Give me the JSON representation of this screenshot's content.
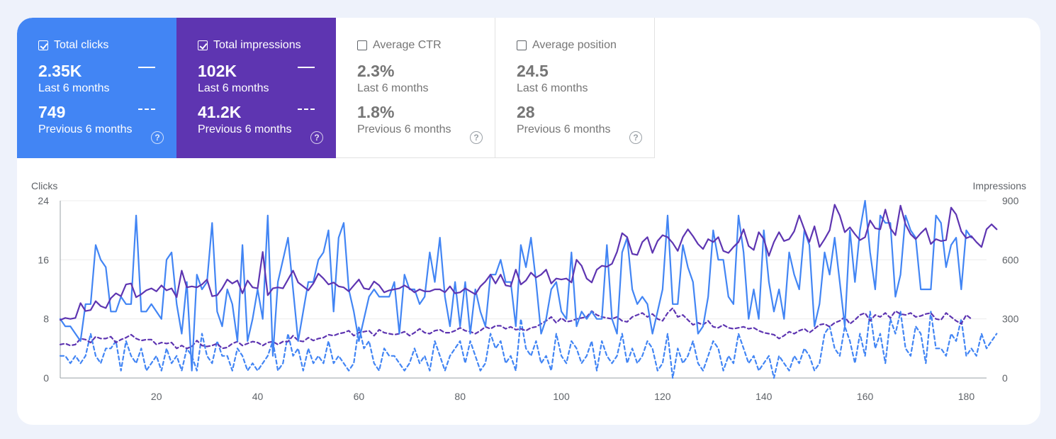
{
  "metrics": {
    "clicks": {
      "label": "Total clicks",
      "checked": true,
      "current_value": "2.35K",
      "current_period": "Last 6 months",
      "previous_value": "749",
      "previous_period": "Previous 6 months",
      "color": "#4285f4"
    },
    "impressions": {
      "label": "Total impressions",
      "checked": true,
      "current_value": "102K",
      "current_period": "Last 6 months",
      "previous_value": "41.2K",
      "previous_period": "Previous 6 months",
      "color": "#5e35b1"
    },
    "ctr": {
      "label": "Average CTR",
      "checked": false,
      "current_value": "2.3%",
      "current_period": "Last 6 months",
      "previous_value": "1.8%",
      "previous_period": "Previous 6 months"
    },
    "position": {
      "label": "Average position",
      "checked": false,
      "current_value": "24.5",
      "current_period": "Last 6 months",
      "previous_value": "28",
      "previous_period": "Previous 6 months"
    },
    "help_glyph": "?"
  },
  "chart_data": {
    "type": "line",
    "left_axis_label": "Clicks",
    "right_axis_label": "Impressions",
    "left_ylim": [
      0,
      24
    ],
    "left_ticks": [
      0,
      8,
      16,
      24
    ],
    "right_ylim": [
      0,
      900
    ],
    "right_ticks": [
      0,
      300,
      600,
      900
    ],
    "xlim": [
      1,
      184
    ],
    "x_ticks": [
      20,
      40,
      60,
      80,
      100,
      120,
      140,
      160,
      180
    ],
    "grid": true,
    "series": [
      {
        "metric": "clicks",
        "period": "current",
        "axis": "left",
        "style": "solid",
        "color": "#4285f4",
        "values": [
          8,
          7,
          7,
          6,
          5,
          10,
          10,
          18,
          16,
          15,
          9,
          9,
          11,
          10,
          10,
          22,
          9,
          9,
          10,
          9,
          8,
          16,
          17,
          10,
          6,
          13,
          1,
          14,
          12,
          13,
          21,
          9,
          7,
          12,
          10,
          5,
          18,
          5,
          8,
          12,
          8,
          22,
          3,
          13,
          16,
          19,
          12,
          5,
          9,
          13,
          13,
          16,
          17,
          20,
          9,
          19,
          21,
          12,
          9,
          5,
          8,
          11,
          12,
          11,
          11,
          11,
          13,
          6,
          14,
          12,
          12,
          10,
          11,
          17,
          13,
          19,
          11,
          7,
          13,
          7,
          13,
          6,
          12,
          9,
          7,
          14,
          14,
          16,
          13,
          13,
          7,
          18,
          15,
          19,
          13,
          6,
          8,
          12,
          13,
          9,
          8,
          17,
          7,
          9,
          8,
          9,
          8,
          8,
          18,
          8,
          6,
          17,
          19,
          12,
          10,
          11,
          10,
          6,
          9,
          12,
          22,
          10,
          10,
          18,
          15,
          13,
          6,
          7,
          11,
          20,
          16,
          16,
          11,
          10,
          22,
          17,
          8,
          12,
          8,
          20,
          13,
          9,
          12,
          8,
          17,
          14,
          12,
          20,
          18,
          7,
          10,
          17,
          14,
          19,
          13,
          7,
          20,
          13,
          20,
          24,
          17,
          12,
          22,
          21,
          21,
          11,
          14,
          22,
          20,
          19,
          12,
          12,
          12,
          22,
          21,
          15,
          18,
          19,
          12,
          20,
          19
        ]
      },
      {
        "metric": "impressions",
        "period": "current",
        "axis": "right",
        "style": "solid",
        "color": "#5e35b1",
        "values": [
          295,
          305,
          300,
          305,
          380,
          340,
          345,
          390,
          365,
          355,
          405,
          430,
          415,
          475,
          480,
          410,
          425,
          445,
          455,
          440,
          470,
          445,
          455,
          410,
          545,
          460,
          465,
          460,
          475,
          500,
          415,
          420,
          455,
          500,
          480,
          495,
          430,
          495,
          460,
          455,
          640,
          420,
          455,
          460,
          455,
          500,
          545,
          485,
          465,
          445,
          480,
          530,
          505,
          475,
          485,
          465,
          460,
          440,
          470,
          500,
          455,
          450,
          490,
          470,
          435,
          445,
          450,
          455,
          470,
          455,
          435,
          450,
          440,
          440,
          450,
          450,
          435,
          465,
          430,
          435,
          455,
          440,
          425,
          465,
          490,
          525,
          480,
          525,
          470,
          465,
          550,
          475,
          495,
          535,
          510,
          525,
          550,
          480,
          505,
          500,
          505,
          485,
          600,
          570,
          505,
          485,
          550,
          570,
          565,
          580,
          640,
          735,
          715,
          630,
          625,
          690,
          715,
          635,
          695,
          725,
          715,
          685,
          645,
          715,
          755,
          720,
          680,
          655,
          705,
          690,
          715,
          645,
          635,
          665,
          690,
          755,
          670,
          650,
          740,
          705,
          620,
          690,
          740,
          695,
          705,
          745,
          825,
          755,
          690,
          770,
          665,
          705,
          750,
          880,
          825,
          740,
          765,
          730,
          700,
          715,
          800,
          760,
          755,
          855,
          760,
          725,
          875,
          780,
          730,
          705,
          735,
          760,
          680,
          705,
          695,
          700,
          865,
          830,
          745,
          710,
          720,
          690,
          665,
          755,
          780,
          755
        ]
      },
      {
        "metric": "clicks",
        "period": "previous",
        "axis": "left",
        "style": "dashed",
        "color": "#4285f4",
        "values": [
          3,
          3,
          2,
          3,
          2,
          3,
          6,
          3,
          2,
          4,
          4,
          5,
          1,
          5,
          3,
          2,
          4,
          1,
          2,
          3,
          1,
          4,
          2,
          3,
          1,
          4,
          3,
          1,
          6,
          3,
          2,
          5,
          3,
          3,
          1,
          4,
          3,
          1,
          2,
          1,
          2,
          3,
          5,
          1,
          2,
          6,
          3,
          4,
          1,
          4,
          2,
          3,
          2,
          5,
          2,
          3,
          2,
          1,
          2,
          7,
          4,
          5,
          2,
          1,
          4,
          3,
          3,
          2,
          1,
          2,
          4,
          2,
          3,
          1,
          5,
          3,
          1,
          3,
          4,
          5,
          2,
          5,
          3,
          1,
          2,
          6,
          4,
          5,
          2,
          3,
          1,
          8,
          4,
          3,
          5,
          2,
          3,
          1,
          6,
          3,
          2,
          5,
          4,
          2,
          3,
          5,
          1,
          5,
          3,
          2,
          3,
          6,
          2,
          4,
          2,
          3,
          5,
          4,
          1,
          2,
          6,
          0,
          4,
          2,
          3,
          5,
          2,
          1,
          3,
          5,
          4,
          1,
          3,
          2,
          6,
          4,
          2,
          3,
          1,
          2,
          3,
          0,
          3,
          2,
          1,
          3,
          2,
          4,
          3,
          1,
          2,
          6,
          7,
          4,
          3,
          7,
          5,
          2,
          6,
          3,
          9,
          4,
          6,
          2,
          8,
          6,
          9,
          4,
          3,
          7,
          6,
          2,
          9,
          4,
          4,
          3,
          6,
          5,
          8,
          3,
          4,
          3,
          6,
          4,
          5,
          6
        ]
      },
      {
        "metric": "impressions",
        "period": "previous",
        "axis": "right",
        "style": "dashed",
        "color": "#5e35b1",
        "values": [
          170,
          175,
          165,
          170,
          200,
          195,
          180,
          210,
          200,
          200,
          210,
          180,
          195,
          205,
          220,
          200,
          190,
          195,
          195,
          170,
          180,
          175,
          180,
          150,
          165,
          150,
          160,
          190,
          165,
          160,
          165,
          175,
          150,
          155,
          175,
          185,
          165,
          175,
          185,
          180,
          165,
          180,
          185,
          170,
          185,
          185,
          215,
          190,
          185,
          205,
          190,
          200,
          205,
          220,
          215,
          225,
          230,
          240,
          215,
          230,
          235,
          240,
          215,
          245,
          230,
          225,
          220,
          225,
          235,
          215,
          230,
          250,
          230,
          225,
          240,
          245,
          230,
          230,
          240,
          255,
          240,
          235,
          225,
          240,
          260,
          250,
          265,
          265,
          250,
          260,
          245,
          250,
          240,
          255,
          260,
          275,
          290,
          310,
          280,
          305,
          285,
          290,
          300,
          305,
          310,
          340,
          320,
          310,
          305,
          300,
          310,
          290,
          285,
          310,
          320,
          330,
          310,
          325,
          300,
          290,
          330,
          355,
          310,
          320,
          295,
          270,
          280,
          270,
          290,
          260,
          255,
          270,
          255,
          250,
          255,
          260,
          250,
          255,
          240,
          230,
          225,
          220,
          200,
          215,
          235,
          225,
          240,
          250,
          230,
          250,
          270,
          275,
          260,
          280,
          290,
          310,
          275,
          295,
          320,
          330,
          290,
          320,
          310,
          330,
          305,
          340,
          325,
          320,
          330,
          310,
          315,
          325,
          330,
          300,
          295,
          330,
          310,
          290,
          275,
          320,
          300
        ]
      }
    ]
  }
}
